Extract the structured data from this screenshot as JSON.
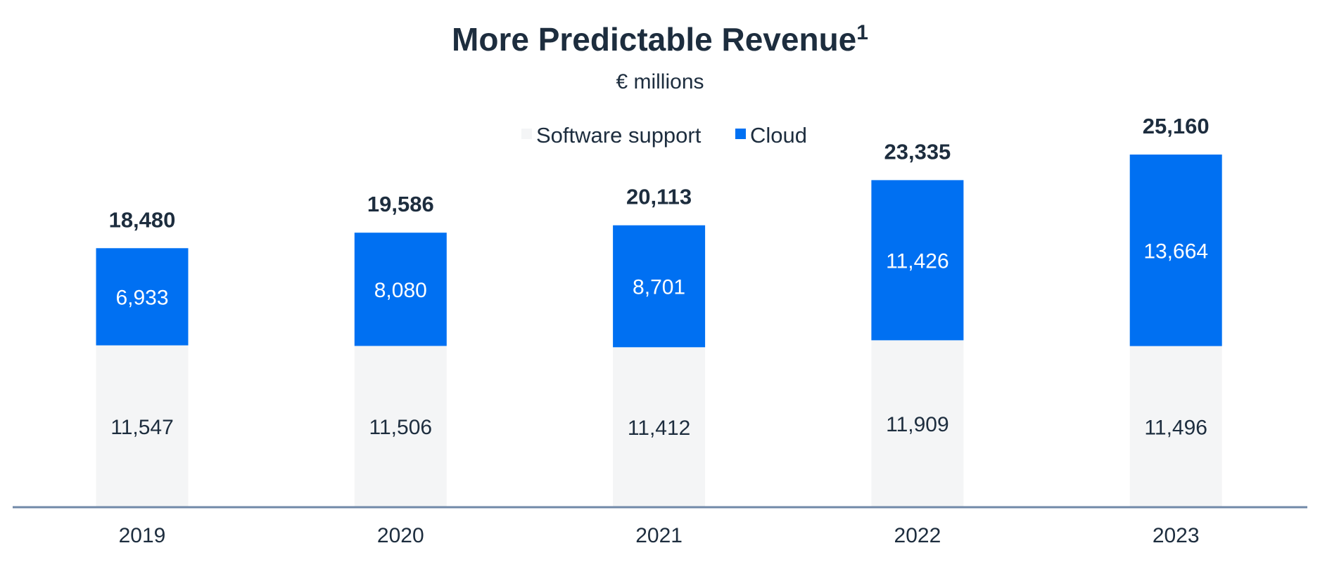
{
  "chart_data": {
    "type": "bar",
    "stacked": true,
    "title": "More Predictable Revenue",
    "title_superscript": "1",
    "subtitle": "€ millions",
    "categories": [
      "2019",
      "2020",
      "2021",
      "2022",
      "2023"
    ],
    "series": [
      {
        "name": "Software support",
        "color": "#f4f5f6",
        "values": [
          11547,
          11506,
          11412,
          11909,
          11496
        ]
      },
      {
        "name": "Cloud",
        "color": "#0070f2",
        "values": [
          6933,
          8080,
          8701,
          11426,
          13664
        ]
      }
    ],
    "totals": [
      18480,
      19586,
      20113,
      23335,
      25160
    ],
    "value_labels": {
      "software_support": [
        "11,547",
        "11,506",
        "11,412",
        "11,909",
        "11,496"
      ],
      "cloud": [
        "6,933",
        "8,080",
        "8,701",
        "11,426",
        "13,664"
      ],
      "totals": [
        "18,480",
        "19,586",
        "20,113",
        "23,335",
        "25,160"
      ]
    },
    "legend_position": "top-center",
    "grid": false,
    "axis_color": "#7189a8"
  }
}
